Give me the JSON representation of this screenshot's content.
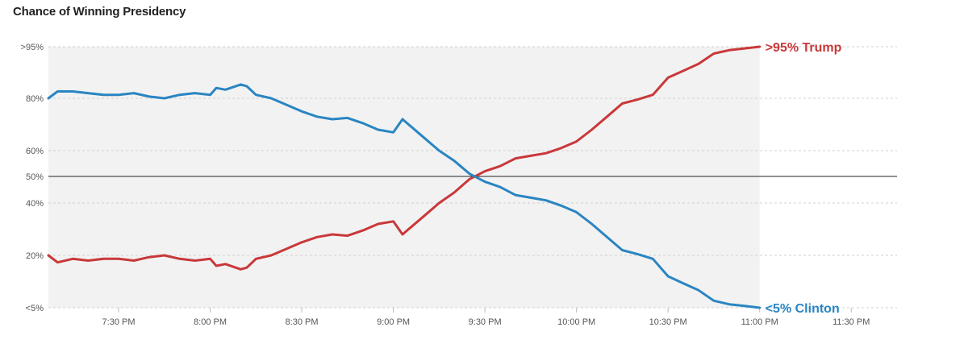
{
  "page": {
    "title": "Chance of Winning Presidency"
  },
  "chart_data": {
    "type": "line",
    "title": "Chance of Winning Presidency",
    "colors": {
      "trump": "#c9383a",
      "clinton": "#2a85c2",
      "shade": "#f2f2f2",
      "grid": "#d0d0d0",
      "midline": "#222222"
    },
    "grid": true,
    "ylim": [
      0,
      100
    ],
    "y_ticks": [
      {
        "value": 95,
        "label": ">95%"
      },
      {
        "value": 80,
        "label": "80%"
      },
      {
        "value": 60,
        "label": "60%"
      },
      {
        "value": 50,
        "label": "50%"
      },
      {
        "value": 40,
        "label": "40%"
      },
      {
        "value": 20,
        "label": "20%"
      },
      {
        "value": 5,
        "label": "<5%"
      }
    ],
    "x_ticks": [
      "7:30 PM",
      "8:00 PM",
      "8:30 PM",
      "9:00 PM",
      "9:30 PM",
      "10:00 PM",
      "10:30 PM",
      "11:00 PM",
      "11:30 PM"
    ],
    "xlim": [
      "7:07 PM",
      "11:45 PM"
    ],
    "shaded_until": "11:00 PM",
    "reference_line": 50,
    "x": [
      "7:07 PM",
      "7:10 PM",
      "7:15 PM",
      "7:20 PM",
      "7:25 PM",
      "7:30 PM",
      "7:35 PM",
      "7:40 PM",
      "7:45 PM",
      "7:50 PM",
      "7:55 PM",
      "8:00 PM",
      "8:02 PM",
      "8:05 PM",
      "8:10 PM",
      "8:12 PM",
      "8:15 PM",
      "8:20 PM",
      "8:25 PM",
      "8:30 PM",
      "8:35 PM",
      "8:40 PM",
      "8:45 PM",
      "8:50 PM",
      "8:55 PM",
      "9:00 PM",
      "9:03 PM",
      "9:05 PM",
      "9:10 PM",
      "9:15 PM",
      "9:20 PM",
      "9:25 PM",
      "9:30 PM",
      "9:35 PM",
      "9:40 PM",
      "9:45 PM",
      "9:50 PM",
      "9:55 PM",
      "10:00 PM",
      "10:05 PM",
      "10:10 PM",
      "10:15 PM",
      "10:20 PM",
      "10:25 PM",
      "10:30 PM",
      "10:35 PM",
      "10:40 PM",
      "10:45 PM",
      "10:50 PM",
      "10:55 PM",
      "11:00 PM"
    ],
    "series": [
      {
        "name": ">95% Trump",
        "color": "#c9383a",
        "values": [
          20,
          18,
          19,
          18.5,
          19,
          19,
          18.5,
          19.5,
          20,
          19,
          18.5,
          19,
          17,
          17.5,
          16,
          16.5,
          19,
          20,
          22.5,
          25,
          27,
          28,
          27.5,
          29.5,
          32,
          33,
          28,
          30,
          35,
          40,
          44,
          49,
          52,
          54,
          57,
          58,
          59,
          61,
          63.5,
          68,
          73,
          78,
          79.5,
          81,
          86,
          88,
          90,
          93,
          94,
          94.5,
          95
        ]
      },
      {
        "name": "<5% Clinton",
        "color": "#2a85c2",
        "values": [
          80,
          82,
          82,
          81.5,
          81,
          81,
          81.5,
          80.5,
          80,
          81,
          81.5,
          81,
          83,
          82.5,
          84,
          83.5,
          81,
          80,
          77.5,
          75,
          73,
          72,
          72.5,
          70.5,
          68,
          67,
          72,
          70,
          65,
          60,
          56,
          51,
          48,
          46,
          43,
          42,
          41,
          39,
          36.5,
          32,
          27,
          22,
          20.5,
          19,
          14,
          12,
          10,
          7,
          6,
          5.5,
          5
        ]
      }
    ]
  }
}
